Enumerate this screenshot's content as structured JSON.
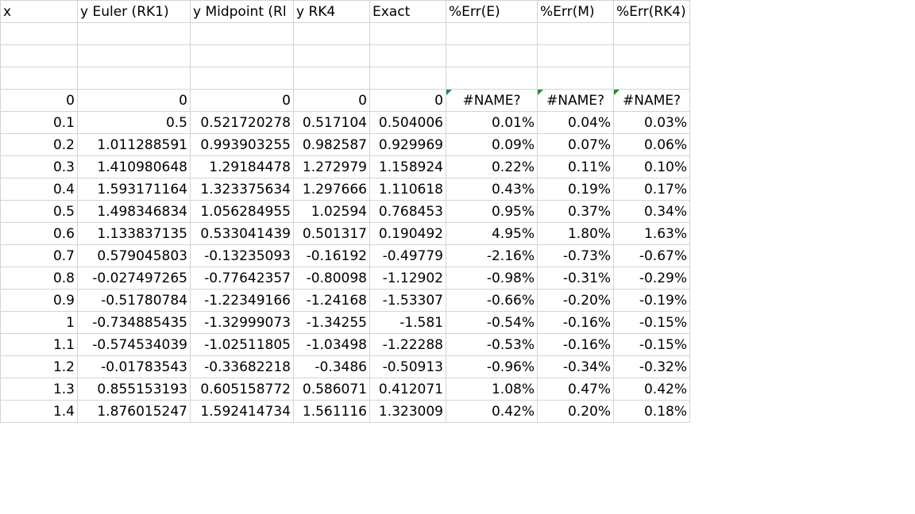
{
  "headers": [
    "x",
    "y Euler (RK1)",
    "y Midpoint (Rl",
    "y RK4",
    "Exact",
    "%Err(E)",
    "%Err(M)",
    "%Err(RK4)"
  ],
  "blank_rows": 3,
  "rows": [
    [
      "0",
      "0",
      "0",
      "0",
      "0",
      "#NAME?",
      "#NAME?",
      "#NAME?"
    ],
    [
      "0.1",
      "0.5",
      "0.521720278",
      "0.517104",
      "0.504006",
      "0.01%",
      "0.04%",
      "0.03%"
    ],
    [
      "0.2",
      "1.011288591",
      "0.993903255",
      "0.982587",
      "0.929969",
      "0.09%",
      "0.07%",
      "0.06%"
    ],
    [
      "0.3",
      "1.410980648",
      "1.29184478",
      "1.272979",
      "1.158924",
      "0.22%",
      "0.11%",
      "0.10%"
    ],
    [
      "0.4",
      "1.593171164",
      "1.323375634",
      "1.297666",
      "1.110618",
      "0.43%",
      "0.19%",
      "0.17%"
    ],
    [
      "0.5",
      "1.498346834",
      "1.056284955",
      "1.02594",
      "0.768453",
      "0.95%",
      "0.37%",
      "0.34%"
    ],
    [
      "0.6",
      "1.133837135",
      "0.533041439",
      "0.501317",
      "0.190492",
      "4.95%",
      "1.80%",
      "1.63%"
    ],
    [
      "0.7",
      "0.579045803",
      "-0.13235093",
      "-0.16192",
      "-0.49779",
      "-2.16%",
      "-0.73%",
      "-0.67%"
    ],
    [
      "0.8",
      "-0.027497265",
      "-0.77642357",
      "-0.80098",
      "-1.12902",
      "-0.98%",
      "-0.31%",
      "-0.29%"
    ],
    [
      "0.9",
      "-0.51780784",
      "-1.22349166",
      "-1.24168",
      "-1.53307",
      "-0.66%",
      "-0.20%",
      "-0.19%"
    ],
    [
      "1",
      "-0.734885435",
      "-1.32999073",
      "-1.34255",
      "-1.581",
      "-0.54%",
      "-0.16%",
      "-0.15%"
    ],
    [
      "1.1",
      "-0.574534039",
      "-1.02511805",
      "-1.03498",
      "-1.22288",
      "-0.53%",
      "-0.16%",
      "-0.15%"
    ],
    [
      "1.2",
      "-0.01783543",
      "-0.33682218",
      "-0.3486",
      "-0.50913",
      "-0.96%",
      "-0.34%",
      "-0.32%"
    ],
    [
      "1.3",
      "0.855153193",
      "0.605158772",
      "0.586071",
      "0.412071",
      "1.08%",
      "0.47%",
      "0.42%"
    ],
    [
      "1.4",
      "1.876015247",
      "1.592414734",
      "1.561116",
      "1.323009",
      "0.42%",
      "0.20%",
      "0.18%"
    ]
  ],
  "colors": {
    "gridline": "#d4d4d4",
    "error_flag": "#1e8f3a"
  }
}
